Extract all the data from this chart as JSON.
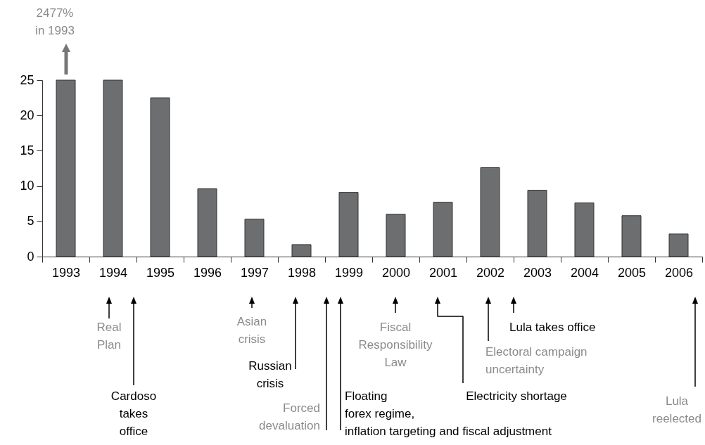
{
  "chart_data": {
    "type": "bar",
    "categories": [
      "1993",
      "1994",
      "1995",
      "1996",
      "1997",
      "1998",
      "1999",
      "2000",
      "2001",
      "2002",
      "2003",
      "2004",
      "2005",
      "2006"
    ],
    "values": [
      25,
      25,
      22.5,
      9.6,
      5.3,
      1.7,
      9.1,
      6.0,
      7.7,
      12.6,
      9.4,
      7.6,
      5.8,
      3.2
    ],
    "color": "#6d6e70",
    "ylim": [
      0,
      25
    ],
    "yticks": [
      0,
      5,
      10,
      15,
      20,
      25
    ],
    "grid": false,
    "annotations": [
      "2477% in 1993",
      "Real Plan",
      "Cardoso takes office",
      "Asian crisis",
      "Russian crisis",
      "Forced devaluation",
      "Floating forex regime, inflation targeting and fiscal adjustment",
      "Fiscal Responsibility Law",
      "Electricity shortage",
      "Electoral campaign uncertainty",
      "Lula takes office",
      "Lula reelected"
    ]
  }
}
